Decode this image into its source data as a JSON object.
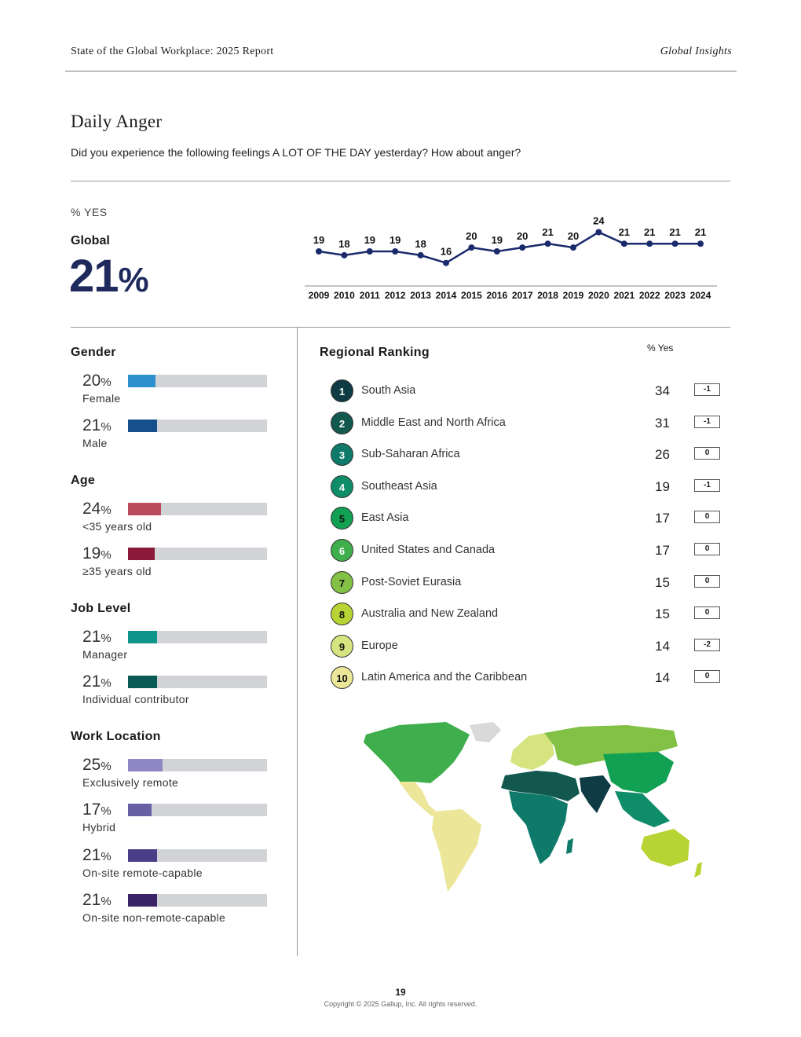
{
  "header": {
    "report_title": "State of the Global Workplace: 2025 Report",
    "section": "Global Insights"
  },
  "title": "Daily Anger",
  "question": "Did you experience the following feelings A LOT OF THE DAY yesterday? How about anger?",
  "pct_label": "% YES",
  "global": {
    "label": "Global",
    "value": "21",
    "unit": "%"
  },
  "chart_data": {
    "type": "line",
    "x": [
      "2009",
      "2010",
      "2011",
      "2012",
      "2013",
      "2014",
      "2015",
      "2016",
      "2017",
      "2018",
      "2019",
      "2020",
      "2021",
      "2022",
      "2023",
      "2024"
    ],
    "series": [
      {
        "values": [
          19,
          18,
          19,
          19,
          18,
          16,
          20,
          19,
          20,
          21,
          20,
          24,
          21,
          21,
          21,
          21
        ]
      }
    ],
    "color": "#1a2a6c"
  },
  "demographics": [
    {
      "title": "Gender",
      "items": [
        {
          "value": "20",
          "unit": "%",
          "label": "Female",
          "color": "#2e8fcf"
        },
        {
          "value": "21",
          "unit": "%",
          "label": "Male",
          "color": "#174f8c"
        }
      ]
    },
    {
      "title": "Age",
      "items": [
        {
          "value": "24",
          "unit": "%",
          "label": "<35 years old",
          "color": "#b94b5c"
        },
        {
          "value": "19",
          "unit": "%",
          "label": "≥35 years old",
          "color": "#8b1a3a"
        }
      ]
    },
    {
      "title": "Job Level",
      "items": [
        {
          "value": "21",
          "unit": "%",
          "label": "Manager",
          "color": "#0e9488"
        },
        {
          "value": "21",
          "unit": "%",
          "label": "Individual contributor",
          "color": "#0a5a55"
        }
      ]
    },
    {
      "title": "Work Location",
      "items": [
        {
          "value": "25",
          "unit": "%",
          "label": "Exclusively remote",
          "color": "#8f87c4"
        },
        {
          "value": "17",
          "unit": "%",
          "label": "Hybrid",
          "color": "#6860a5"
        },
        {
          "value": "21",
          "unit": "%",
          "label": "On-site remote-capable",
          "color": "#4b3e89"
        },
        {
          "value": "21",
          "unit": "%",
          "label": "On-site non-remote-capable",
          "color": "#3a2466"
        }
      ]
    }
  ],
  "ranking": {
    "title": "Regional Ranking",
    "col_label": "% Yes",
    "rows": [
      {
        "rank": "1",
        "name": "South Asia",
        "value": "34",
        "change": "-1",
        "color": "#0f3b44",
        "text": "#fff"
      },
      {
        "rank": "2",
        "name": "Middle East and North Africa",
        "value": "31",
        "change": "-1",
        "color": "#12584f",
        "text": "#fff"
      },
      {
        "rank": "3",
        "name": "Sub-Saharan Africa",
        "value": "26",
        "change": "0",
        "color": "#0f7a6a",
        "text": "#fff"
      },
      {
        "rank": "4",
        "name": "Southeast Asia",
        "value": "19",
        "change": "-1",
        "color": "#0f8c68",
        "text": "#fff"
      },
      {
        "rank": "5",
        "name": "East Asia",
        "value": "17",
        "change": "0",
        "color": "#12a153",
        "text": "#111"
      },
      {
        "rank": "6",
        "name": "United States and Canada",
        "value": "17",
        "change": "0",
        "color": "#3fae4c",
        "text": "#fff"
      },
      {
        "rank": "7",
        "name": "Post-Soviet Eurasia",
        "value": "15",
        "change": "0",
        "color": "#82c146",
        "text": "#111"
      },
      {
        "rank": "8",
        "name": "Australia and New Zealand",
        "value": "15",
        "change": "0",
        "color": "#b8d434",
        "text": "#111"
      },
      {
        "rank": "9",
        "name": "Europe",
        "value": "14",
        "change": "-2",
        "color": "#d6e47f",
        "text": "#111"
      },
      {
        "rank": "10",
        "name": "Latin America and the Caribbean",
        "value": "14",
        "change": "0",
        "color": "#ece699",
        "text": "#111"
      }
    ]
  },
  "page_number": "19",
  "copyright": "Copyright © 2025 Gallup, Inc. All rights reserved."
}
